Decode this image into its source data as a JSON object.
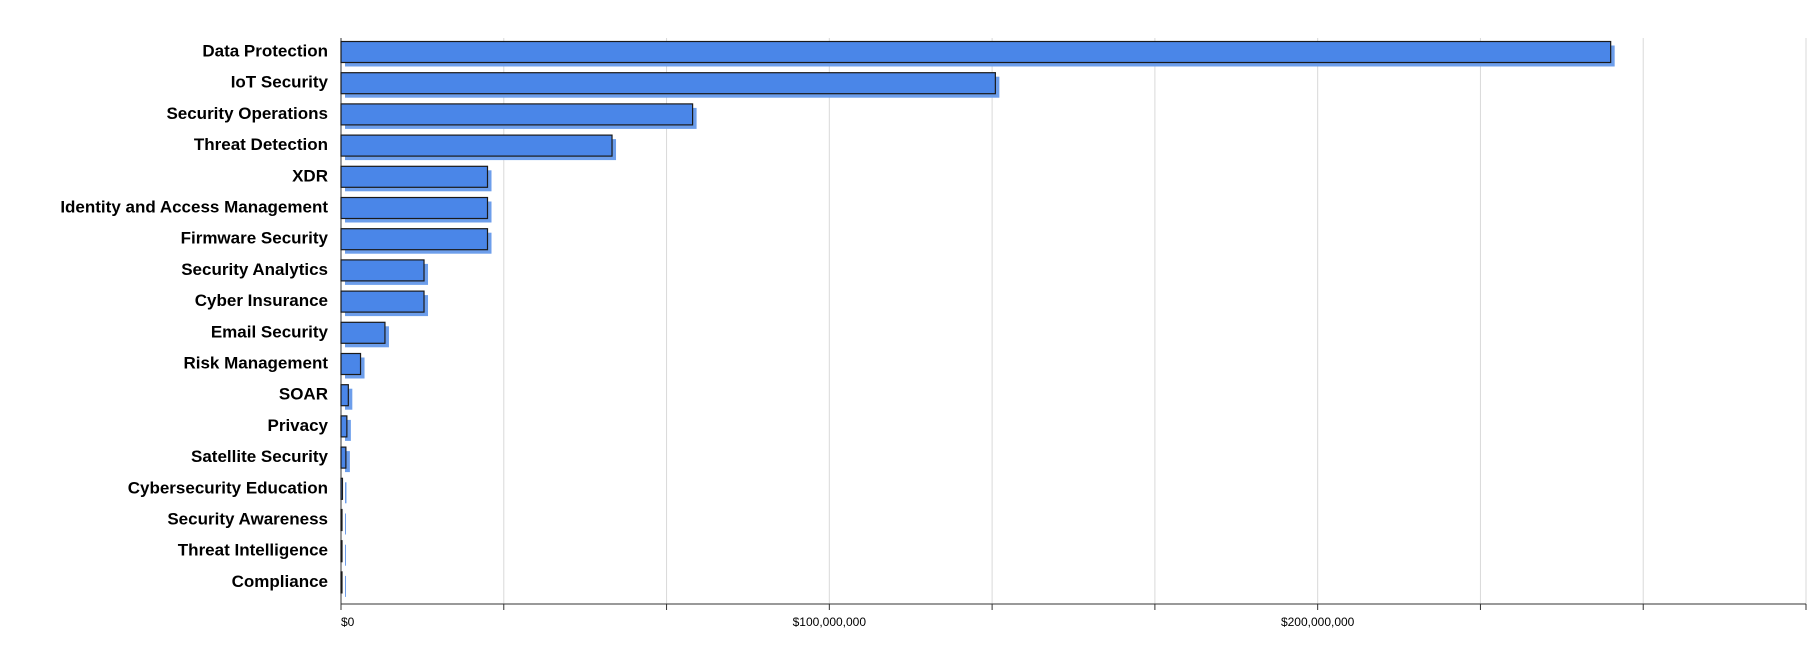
{
  "chart_data": {
    "type": "bar",
    "orientation": "horizontal",
    "categories": [
      "Data Protection",
      "IoT Security",
      "Security Operations",
      "Threat Detection",
      "XDR",
      "Identity and Access Management",
      "Firmware Security",
      "Security Analytics",
      "Cyber Insurance",
      "Email Security",
      "Risk Management",
      "SOAR",
      "Privacy",
      "Satellite Security",
      "Cybersecurity Education",
      "Security Awareness",
      "Threat Intelligence",
      "Compliance"
    ],
    "values": [
      260000000,
      134000000,
      72000000,
      55500000,
      30000000,
      30000000,
      30000000,
      17000000,
      17000000,
      9000000,
      4000000,
      1500000,
      1200000,
      1000000,
      300000,
      200000,
      100000,
      100000
    ],
    "color": "#4a86e8",
    "xlim": [
      0,
      300000000
    ],
    "xticks": [
      {
        "value": 0,
        "label": "$0"
      },
      {
        "value": 100000000,
        "label": "$100,000,000"
      },
      {
        "value": 200000000,
        "label": "$200,000,000"
      }
    ],
    "minor_xticks": [
      33333333,
      66666667,
      133333333,
      166666667,
      233333333,
      266666667,
      300000000
    ],
    "grid": true
  }
}
